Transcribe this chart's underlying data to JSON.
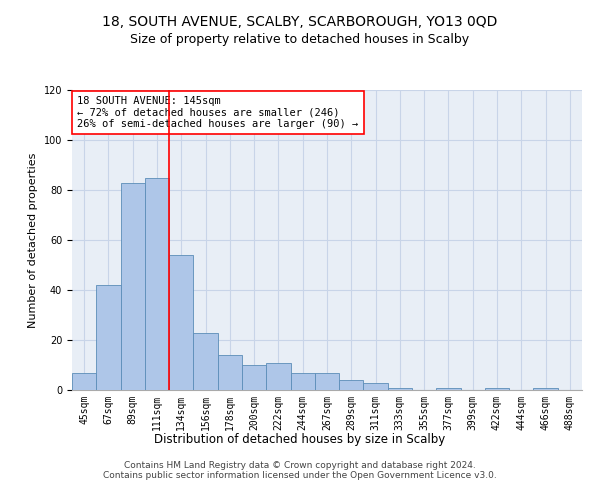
{
  "title": "18, SOUTH AVENUE, SCALBY, SCARBOROUGH, YO13 0QD",
  "subtitle": "Size of property relative to detached houses in Scalby",
  "xlabel": "Distribution of detached houses by size in Scalby",
  "ylabel": "Number of detached properties",
  "categories": [
    "45sqm",
    "67sqm",
    "89sqm",
    "111sqm",
    "134sqm",
    "156sqm",
    "178sqm",
    "200sqm",
    "222sqm",
    "244sqm",
    "267sqm",
    "289sqm",
    "311sqm",
    "333sqm",
    "355sqm",
    "377sqm",
    "399sqm",
    "422sqm",
    "444sqm",
    "466sqm",
    "488sqm"
  ],
  "values": [
    7,
    42,
    83,
    85,
    54,
    23,
    14,
    10,
    11,
    7,
    7,
    4,
    3,
    1,
    0,
    1,
    0,
    1,
    0,
    1,
    0
  ],
  "bar_color": "#aec6e8",
  "bar_edge_color": "#5b8db8",
  "annotation_box_text": "18 SOUTH AVENUE: 145sqm\n← 72% of detached houses are smaller (246)\n26% of semi-detached houses are larger (90) →",
  "ylim": [
    0,
    120
  ],
  "yticks": [
    0,
    20,
    40,
    60,
    80,
    100,
    120
  ],
  "grid_color": "#c8d4e8",
  "background_color": "#e8eef6",
  "footer_line1": "Contains HM Land Registry data © Crown copyright and database right 2024.",
  "footer_line2": "Contains public sector information licensed under the Open Government Licence v3.0.",
  "title_fontsize": 10,
  "subtitle_fontsize": 9,
  "xlabel_fontsize": 8.5,
  "ylabel_fontsize": 8,
  "tick_fontsize": 7,
  "ann_fontsize": 7.5,
  "footer_fontsize": 6.5
}
